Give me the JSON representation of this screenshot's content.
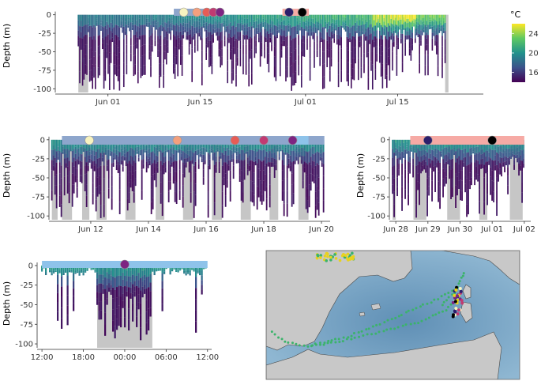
{
  "figure": {
    "colorbar": {
      "title": "°C",
      "ticks": [
        {
          "label": "24",
          "value": 24
        },
        {
          "label": "20",
          "value": 20
        },
        {
          "label": "16",
          "value": 16
        }
      ],
      "range": [
        14,
        26
      ],
      "colors": [
        "#440154",
        "#3b528b",
        "#21918c",
        "#5ec962",
        "#fde725"
      ]
    },
    "map": {
      "sea_color": "#7da8c6",
      "land_color": "#c8c8c8",
      "track_color": "#3bb36b",
      "labels": []
    },
    "colors": {
      "gray_band": "#c6c6c6",
      "bar_blue": "#8ea6cc",
      "bar_light_blue": "#8ec3ea",
      "bar_pink": "#f6aaa5"
    }
  },
  "chart_data": [
    {
      "id": "panel-full",
      "type": "heatmap",
      "title": "",
      "ylabel": "Depth (m)",
      "ylim": [
        -105,
        5
      ],
      "yticks": [
        0,
        -25,
        -50,
        -75,
        -100
      ],
      "ytick_labels": [
        "0",
        "-25",
        "-50",
        "-75",
        "-100"
      ],
      "xticks": [
        {
          "label": "Jun 01",
          "value": 7
        },
        {
          "label": "Jun 15",
          "value": 21
        },
        {
          "label": "Jul 01",
          "value": 37
        },
        {
          "label": "Jul 15",
          "value": 51
        }
      ],
      "xlim": [
        -1,
        64
      ],
      "data_range": [
        2.5,
        58.2
      ],
      "gray_bands": [
        [
          2.5,
          4.0
        ],
        [
          58.2,
          58.7
        ]
      ],
      "bars": [
        {
          "from": 17.0,
          "to": 24.0,
          "color": "blue"
        },
        {
          "from": 33.5,
          "to": 37.5,
          "color": "pink"
        }
      ],
      "markers": [
        {
          "x": 18.5,
          "color": "#f7f3c0"
        },
        {
          "x": 20.5,
          "color": "#f3a07e"
        },
        {
          "x": 22.0,
          "color": "#e65c56"
        },
        {
          "x": 23.0,
          "color": "#c13a72"
        },
        {
          "x": 24.0,
          "color": "#7e2482"
        },
        {
          "x": 34.5,
          "color": "#2d1e6b"
        },
        {
          "x": 36.5,
          "color": "#000000"
        }
      ]
    },
    {
      "id": "panel-june",
      "type": "heatmap",
      "title": "",
      "ylabel": "Depth (m)",
      "ylim": [
        -105,
        5
      ],
      "yticks": [
        0,
        -25,
        -50,
        -75,
        -100
      ],
      "ytick_labels": [
        "0",
        "-25",
        "-50",
        "-75",
        "-100"
      ],
      "xticks": [
        {
          "label": "Jun 12",
          "value": 12
        },
        {
          "label": "Jun 14",
          "value": 14
        },
        {
          "label": "Jun 16",
          "value": 16
        },
        {
          "label": "Jun 18",
          "value": 18
        },
        {
          "label": "Jun 20",
          "value": 20
        }
      ],
      "xlim": [
        10.55,
        20.3
      ],
      "data_range": [
        10.65,
        20.1
      ],
      "gray_bands": [
        [
          10.65,
          10.85
        ],
        [
          11.0,
          11.35
        ],
        [
          11.7,
          11.95
        ],
        [
          12.2,
          12.55
        ],
        [
          13.2,
          13.55
        ],
        [
          14.25,
          14.55
        ],
        [
          15.2,
          15.55
        ],
        [
          16.2,
          16.55
        ],
        [
          17.2,
          17.55
        ],
        [
          18.2,
          18.5
        ],
        [
          19.2,
          19.55
        ]
      ],
      "bars": [
        {
          "from": 11.0,
          "to": 20.1,
          "color": "blue"
        },
        {
          "from": 18.95,
          "to": 19.55,
          "color": "lightblue"
        }
      ],
      "markers": [
        {
          "x": 11.95,
          "color": "#f7f3c0"
        },
        {
          "x": 15.0,
          "color": "#f3a07e"
        },
        {
          "x": 17.0,
          "color": "#e65c56"
        },
        {
          "x": 18.0,
          "color": "#c13a72"
        },
        {
          "x": 19.0,
          "color": "#7e2482"
        }
      ]
    },
    {
      "id": "panel-july",
      "type": "heatmap",
      "title": "",
      "ylabel": "Depth (m)",
      "ylim": [
        -105,
        5
      ],
      "yticks": [
        0,
        -25,
        -50,
        -75,
        -100
      ],
      "ytick_labels": [
        "0",
        "-25",
        "-50",
        "-75",
        "-100"
      ],
      "xticks": [
        {
          "label": "Jun 28",
          "value": 0
        },
        {
          "label": "Jun 29",
          "value": 1
        },
        {
          "label": "Jun 30",
          "value": 2
        },
        {
          "label": "Jul 01",
          "value": 3
        },
        {
          "label": "Jul 02",
          "value": 4
        }
      ],
      "xlim": [
        -0.2,
        4.2
      ],
      "data_range": [
        -0.1,
        4.0
      ],
      "gray_bands": [
        [
          -0.1,
          0.0
        ],
        [
          0.55,
          0.95
        ],
        [
          1.6,
          2.0
        ],
        [
          2.6,
          2.85
        ],
        [
          3.55,
          3.95
        ]
      ],
      "bars": [
        {
          "from": 0.45,
          "to": 4.0,
          "color": "pink"
        }
      ],
      "markers": [
        {
          "x": 1.0,
          "color": "#2d1e6b"
        },
        {
          "x": 3.0,
          "color": "#000000"
        }
      ]
    },
    {
      "id": "panel-day",
      "type": "heatmap",
      "title": "",
      "ylabel": "Depth (m)",
      "ylim": [
        -105,
        5
      ],
      "yticks": [
        0,
        -25,
        -50,
        -75,
        -100
      ],
      "ytick_labels": [
        "0",
        "-25",
        "-50",
        "-75",
        "-100"
      ],
      "xticks": [
        {
          "label": "12:00",
          "value": 0
        },
        {
          "label": "18:00",
          "value": 6
        },
        {
          "label": "00:00",
          "value": 12
        },
        {
          "label": "06:00",
          "value": 18
        },
        {
          "label": "12:00",
          "value": 24
        }
      ],
      "xlim": [
        -0.7,
        24.6
      ],
      "data_range": [
        0.0,
        24.0
      ],
      "gray_bands": [
        [
          8.0,
          16.0
        ]
      ],
      "bars": [
        {
          "from": 0.0,
          "to": 24.0,
          "color": "lightblue"
        }
      ],
      "markers": [
        {
          "x": 12.0,
          "color": "#7e2482"
        }
      ]
    }
  ]
}
